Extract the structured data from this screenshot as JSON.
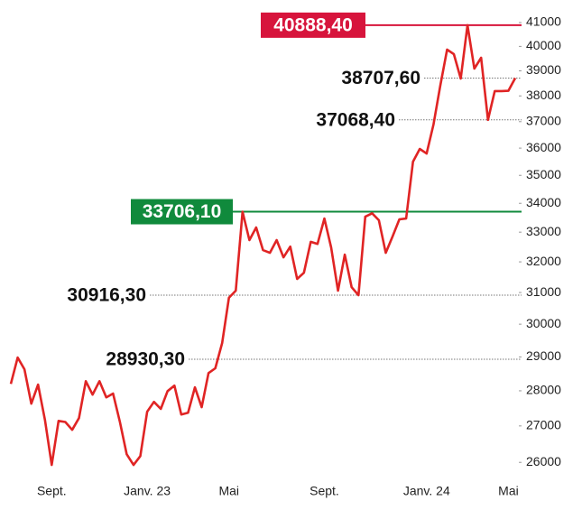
{
  "chart_data": {
    "type": "line",
    "log_scale": true,
    "line_color": "#e02424",
    "categories": [
      null,
      null,
      null,
      null,
      null,
      null,
      "Sept.",
      null,
      null,
      null,
      null,
      null,
      null,
      null,
      null,
      null,
      null,
      null,
      null,
      null,
      "Janv. 23",
      null,
      null,
      null,
      null,
      null,
      null,
      null,
      null,
      null,
      null,
      null,
      "Mai",
      null,
      null,
      null,
      null,
      null,
      null,
      null,
      null,
      null,
      null,
      null,
      null,
      null,
      "Sept.",
      null,
      null,
      null,
      null,
      null,
      null,
      null,
      null,
      null,
      null,
      null,
      null,
      null,
      null,
      "Janv. 24",
      null,
      null,
      null,
      null,
      null,
      null,
      null,
      null,
      null,
      null,
      null,
      "Mai",
      null
    ],
    "values": [
      28200,
      28980,
      28630,
      27630,
      28180,
      27170,
      25930,
      27140,
      27110,
      26890,
      27220,
      28280,
      27890,
      28280,
      27810,
      27920,
      27110,
      26220,
      25930,
      26170,
      27400,
      27680,
      27480,
      27990,
      28150,
      27320,
      27370,
      28100,
      27530,
      28520,
      28660,
      29420,
      30830,
      31060,
      33706.1,
      32730,
      33160,
      32390,
      32300,
      32730,
      32150,
      32510,
      31440,
      31640,
      32670,
      32600,
      33470,
      32480,
      31060,
      32240,
      31170,
      30916.3,
      33530,
      33650,
      33410,
      32300,
      32850,
      33440,
      33470,
      35500,
      35970,
      35800,
      36890,
      38400,
      39870,
      39680,
      38690,
      40888.4,
      39090,
      39530,
      37068.4,
      38190,
      38190,
      38200,
      38707.6
    ],
    "ylim": [
      25500,
      41500
    ],
    "yticks": [
      26000,
      27000,
      28000,
      29000,
      30000,
      31000,
      32000,
      33000,
      34000,
      35000,
      36000,
      37000,
      38000,
      39000,
      40000,
      41000
    ],
    "reference_lines": [
      {
        "value": 40888.4,
        "label": "40888,40",
        "color": "#d7143c"
      },
      {
        "value": 38707.6,
        "label": "38707,60"
      },
      {
        "value": 37068.4,
        "label": "37068,40"
      },
      {
        "value": 33706.1,
        "label": "33706,10",
        "color": "#108a3c"
      },
      {
        "value": 30916.3,
        "label": "30916,30"
      },
      {
        "value": 28930.3,
        "label": "28930,30"
      }
    ]
  }
}
